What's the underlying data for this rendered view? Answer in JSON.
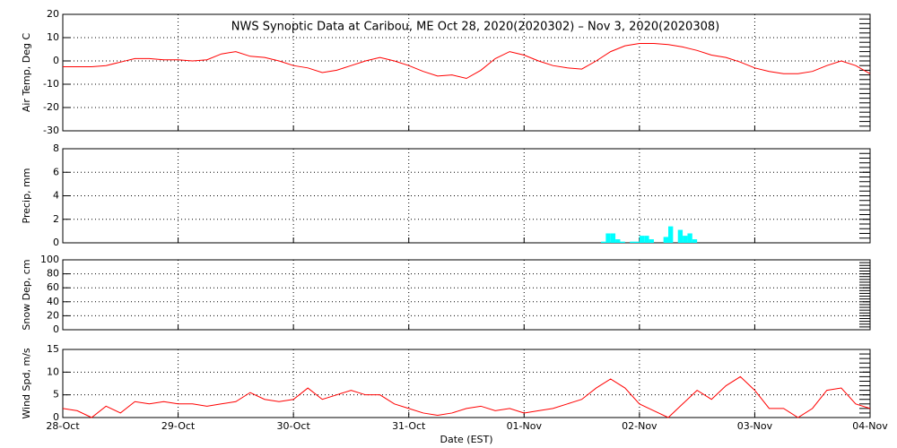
{
  "title": "NWS Synoptic Data at Caribou, ME   Oct 28, 2020(2020302) – Nov  3, 2020(2020308)",
  "xlabel": "Date (EST)",
  "xlim": [
    0,
    168
  ],
  "xticks": [
    {
      "value": 0,
      "label": "28-Oct"
    },
    {
      "value": 24,
      "label": "29-Oct"
    },
    {
      "value": 48,
      "label": "30-Oct"
    },
    {
      "value": 72,
      "label": "31-Oct"
    },
    {
      "value": 96,
      "label": "01-Nov"
    },
    {
      "value": 120,
      "label": "02-Nov"
    },
    {
      "value": 144,
      "label": "03-Nov"
    },
    {
      "value": 168,
      "label": "04-Nov"
    }
  ],
  "chart_data": [
    {
      "type": "line",
      "ylabel": "Air Temp, Deg C",
      "ylim": [
        -30,
        20
      ],
      "yticks": [
        -30,
        -20,
        -10,
        0,
        10,
        20
      ],
      "grid": true,
      "color": "#ff0000",
      "x": [
        0,
        3,
        6,
        9,
        12,
        15,
        18,
        21,
        24,
        27,
        30,
        33,
        36,
        39,
        42,
        45,
        48,
        51,
        54,
        57,
        60,
        63,
        66,
        69,
        72,
        75,
        78,
        81,
        84,
        87,
        90,
        93,
        96,
        99,
        102,
        105,
        108,
        111,
        114,
        117,
        120,
        123,
        126,
        129,
        132,
        135,
        138,
        141,
        144,
        147,
        150,
        153,
        156,
        159,
        162,
        165,
        168
      ],
      "values": [
        -2.5,
        -2.5,
        -2.5,
        -2,
        -0.5,
        1,
        1,
        0.5,
        0.5,
        0,
        0.5,
        3,
        4,
        2,
        1.5,
        0,
        -2,
        -3,
        -5,
        -4,
        -2,
        0,
        1.5,
        0,
        -2,
        -4.5,
        -6.5,
        -6,
        -7.5,
        -4,
        1,
        4,
        2.5,
        0,
        -2,
        -3,
        -3.5,
        0,
        4,
        6.5,
        7.5,
        7.5,
        7,
        6,
        4.5,
        2.5,
        1.5,
        -0.5,
        -3,
        -4.5,
        -5.5,
        -5.5,
        -4.5,
        -2,
        0,
        -2,
        -5.5
      ]
    },
    {
      "type": "bar",
      "ylabel": "Precip, mm",
      "ylim": [
        0,
        8
      ],
      "yticks": [
        0,
        2,
        4,
        6,
        8
      ],
      "grid": true,
      "color": "#00ffff",
      "x": [
        112,
        113,
        114,
        115,
        116,
        118,
        119,
        120,
        121,
        122,
        125,
        126,
        128,
        129,
        130,
        131
      ],
      "values": [
        0.1,
        0.8,
        0.8,
        0.3,
        0.1,
        0.1,
        0.1,
        0.6,
        0.6,
        0.3,
        0.5,
        1.4,
        1.1,
        0.6,
        0.8,
        0.3
      ]
    },
    {
      "type": "bar",
      "ylabel": "Snow Dep, cm",
      "ylim": [
        0,
        100
      ],
      "yticks": [
        0,
        20,
        40,
        60,
        80,
        100
      ],
      "grid": true,
      "color": "#00ffff",
      "x": [],
      "values": []
    },
    {
      "type": "line",
      "ylabel": "Wind Spd, m/s",
      "ylim": [
        0,
        15
      ],
      "yticks": [
        0,
        5,
        10,
        15
      ],
      "grid": true,
      "color": "#ff0000",
      "x": [
        0,
        3,
        6,
        9,
        12,
        15,
        18,
        21,
        24,
        27,
        30,
        33,
        36,
        39,
        42,
        45,
        48,
        51,
        54,
        57,
        60,
        63,
        66,
        69,
        72,
        75,
        78,
        81,
        84,
        87,
        90,
        93,
        96,
        99,
        102,
        105,
        108,
        111,
        114,
        117,
        120,
        123,
        126,
        129,
        132,
        135,
        138,
        141,
        144,
        147,
        150,
        153,
        156,
        159,
        162,
        165,
        168
      ],
      "values": [
        2,
        1.5,
        0,
        2.5,
        1,
        3.5,
        3,
        3.5,
        3,
        3,
        2.5,
        3,
        3.5,
        5.5,
        4,
        3.5,
        4,
        6.5,
        4,
        5,
        6,
        5,
        5,
        3,
        2,
        1,
        0.5,
        1,
        2,
        2.5,
        1.5,
        2,
        1,
        1.5,
        2,
        3,
        4,
        6.5,
        8.5,
        6.5,
        3,
        1.5,
        0,
        3,
        6,
        4,
        7,
        9,
        6,
        2,
        2,
        0,
        2,
        6,
        6.5,
        3,
        2
      ]
    }
  ]
}
